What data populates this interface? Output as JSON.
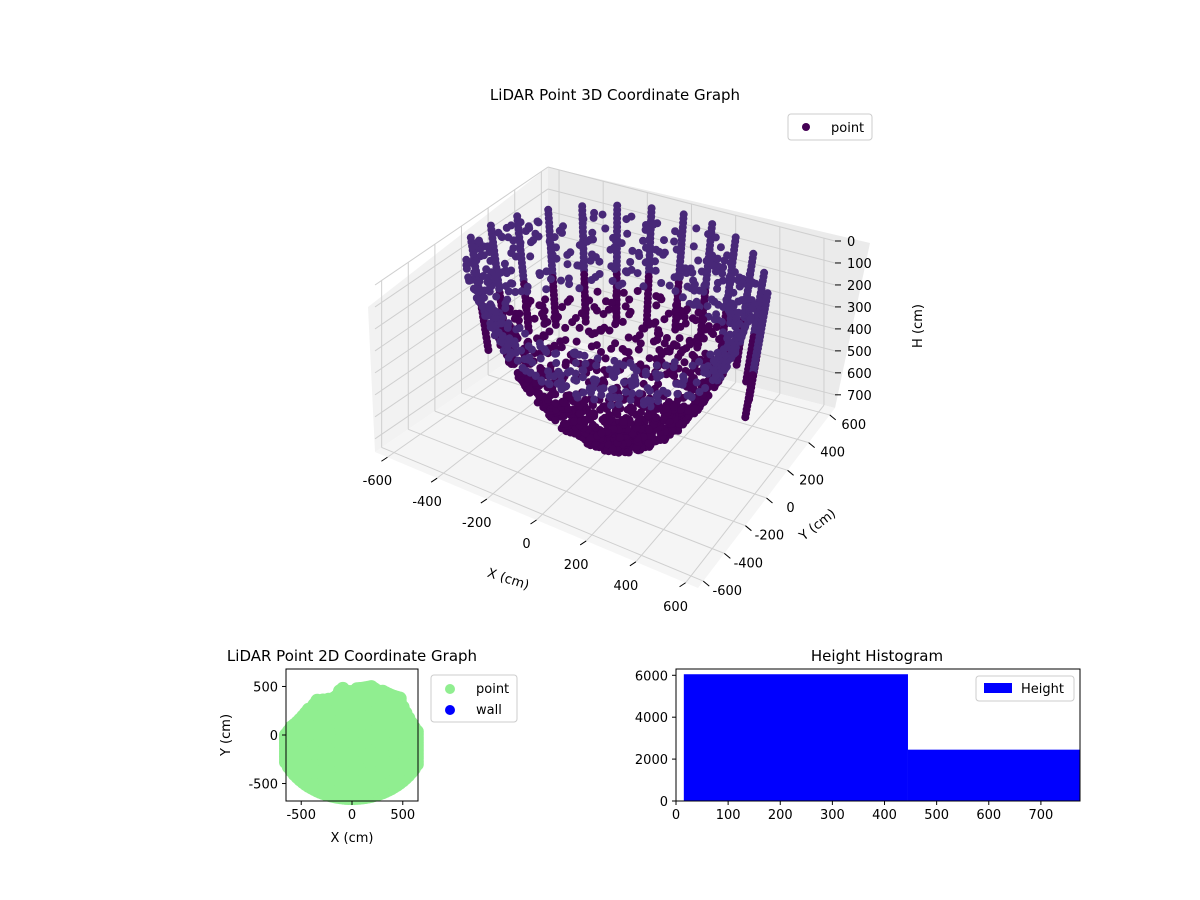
{
  "chart_data": [
    {
      "type": "scatter",
      "projection": "3d",
      "title": "LiDAR Point 3D Coordinate Graph",
      "xlabel": "X (cm)",
      "ylabel": "Y (cm)",
      "zlabel": "H (cm)",
      "xlim": [
        -650,
        650
      ],
      "ylim": [
        -650,
        650
      ],
      "zlim": [
        760,
        0
      ],
      "zaxis_inverted": true,
      "xticks": [
        -600,
        -400,
        -200,
        0,
        200,
        400,
        600
      ],
      "yticks": [
        -600,
        -400,
        -200,
        0,
        200,
        400,
        600
      ],
      "zticks": [
        0,
        100,
        200,
        300,
        400,
        500,
        600,
        700
      ],
      "grid": true,
      "legend": {
        "placement": "upper-right",
        "entries": [
          "point"
        ]
      },
      "series": [
        {
          "name": "point",
          "color": "#440154",
          "color_high": "#482878",
          "description_shape": "bowl-shaped cloud"
        }
      ]
    },
    {
      "type": "scatter",
      "title": "LiDAR Point 2D Coordinate Graph",
      "xlabel": "X (cm)",
      "ylabel": "Y (cm)",
      "xlim": [
        -650,
        650
      ],
      "ylim": [
        -680,
        680
      ],
      "xticks": [
        -500,
        0,
        500
      ],
      "yticks": [
        -500,
        0,
        500
      ],
      "grid": false,
      "legend": {
        "placement": "outside-right",
        "entries": [
          "point",
          "wall"
        ]
      },
      "series": [
        {
          "name": "point",
          "color": "#90ee90"
        },
        {
          "name": "wall",
          "color": "#0000ff"
        }
      ]
    },
    {
      "type": "bar",
      "subtype": "histogram",
      "title": "Height Histogram",
      "xlim": [
        0,
        775
      ],
      "ylim": [
        0,
        6300
      ],
      "xticks": [
        0,
        100,
        200,
        300,
        400,
        500,
        600,
        700
      ],
      "yticks": [
        0,
        2000,
        4000,
        6000
      ],
      "bins": [
        {
          "x0": 15,
          "x1": 445,
          "count": 6050
        },
        {
          "x0": 445,
          "x1": 775,
          "count": 2450
        }
      ],
      "legend": {
        "placement": "upper-right",
        "entries": [
          "Height"
        ]
      },
      "series": [
        {
          "name": "Height",
          "color": "#0000ff"
        }
      ]
    }
  ]
}
